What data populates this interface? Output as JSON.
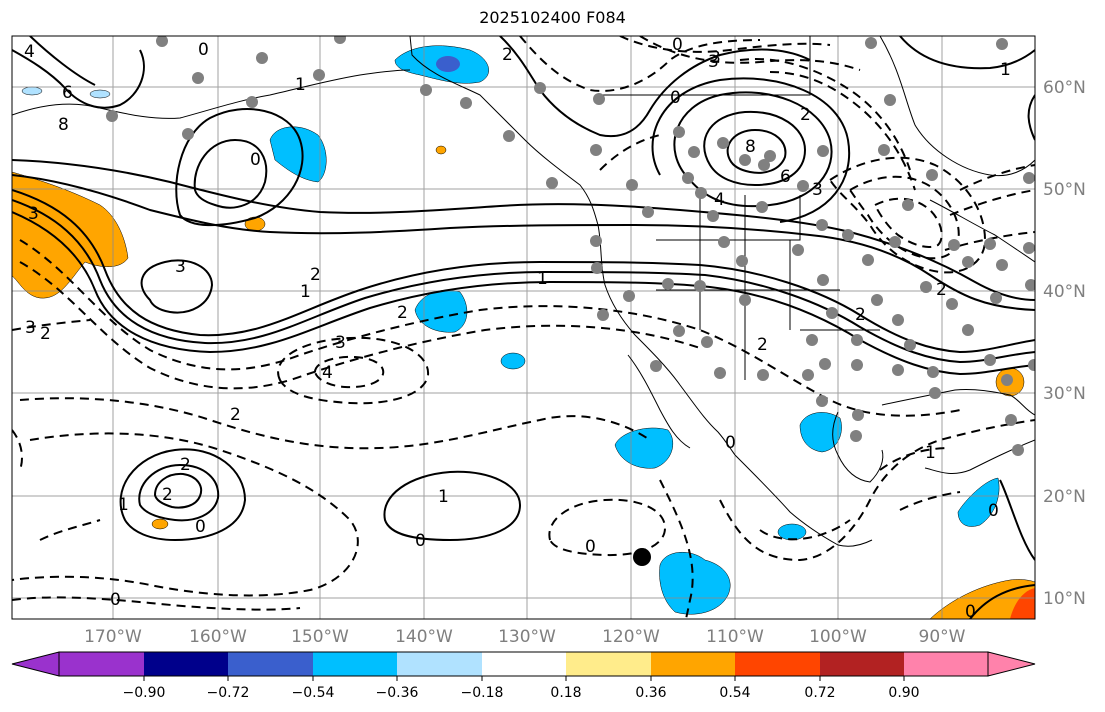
{
  "title": "2025102400 F084",
  "longitude_labels": [
    "170°W",
    "160°W",
    "150°W",
    "140°W",
    "130°W",
    "120°W",
    "110°W",
    "100°W",
    "90°W"
  ],
  "latitude_labels": [
    "60°N",
    "50°N",
    "40°N",
    "30°N",
    "20°N",
    "10°N"
  ],
  "colorbar": {
    "tick_labels": [
      "−0.90",
      "−0.72",
      "−0.54",
      "−0.36",
      "−0.18",
      "0.18",
      "0.36",
      "0.54",
      "0.72",
      "0.90"
    ],
    "colors": [
      "#9a32cd",
      "#00008b",
      "#3a5fcd",
      "#00bfff",
      "#b0e2ff",
      "#ffffff",
      "#ffec8b",
      "#ffa500",
      "#ff4500",
      "#b22222",
      "#ff82ab"
    ]
  },
  "contour_labels": [
    "4",
    "6",
    "8",
    "3",
    "0",
    "2",
    "3",
    "1",
    "0",
    "2",
    "1",
    "2",
    "3",
    "0",
    "6",
    "8",
    "4",
    "3",
    "2",
    "1",
    "0",
    "2",
    "3",
    "4",
    "2",
    "2",
    "1",
    "2",
    "0",
    "0",
    "1",
    "0",
    "0",
    "2",
    "1",
    "1",
    "0",
    "0",
    "0",
    "3",
    "3",
    "2",
    "2"
  ],
  "colors": {
    "grid": "#8c8c8c",
    "contour": "#000000",
    "coast": "#000000",
    "station_dot": "#808080",
    "marker": "#000000"
  }
}
